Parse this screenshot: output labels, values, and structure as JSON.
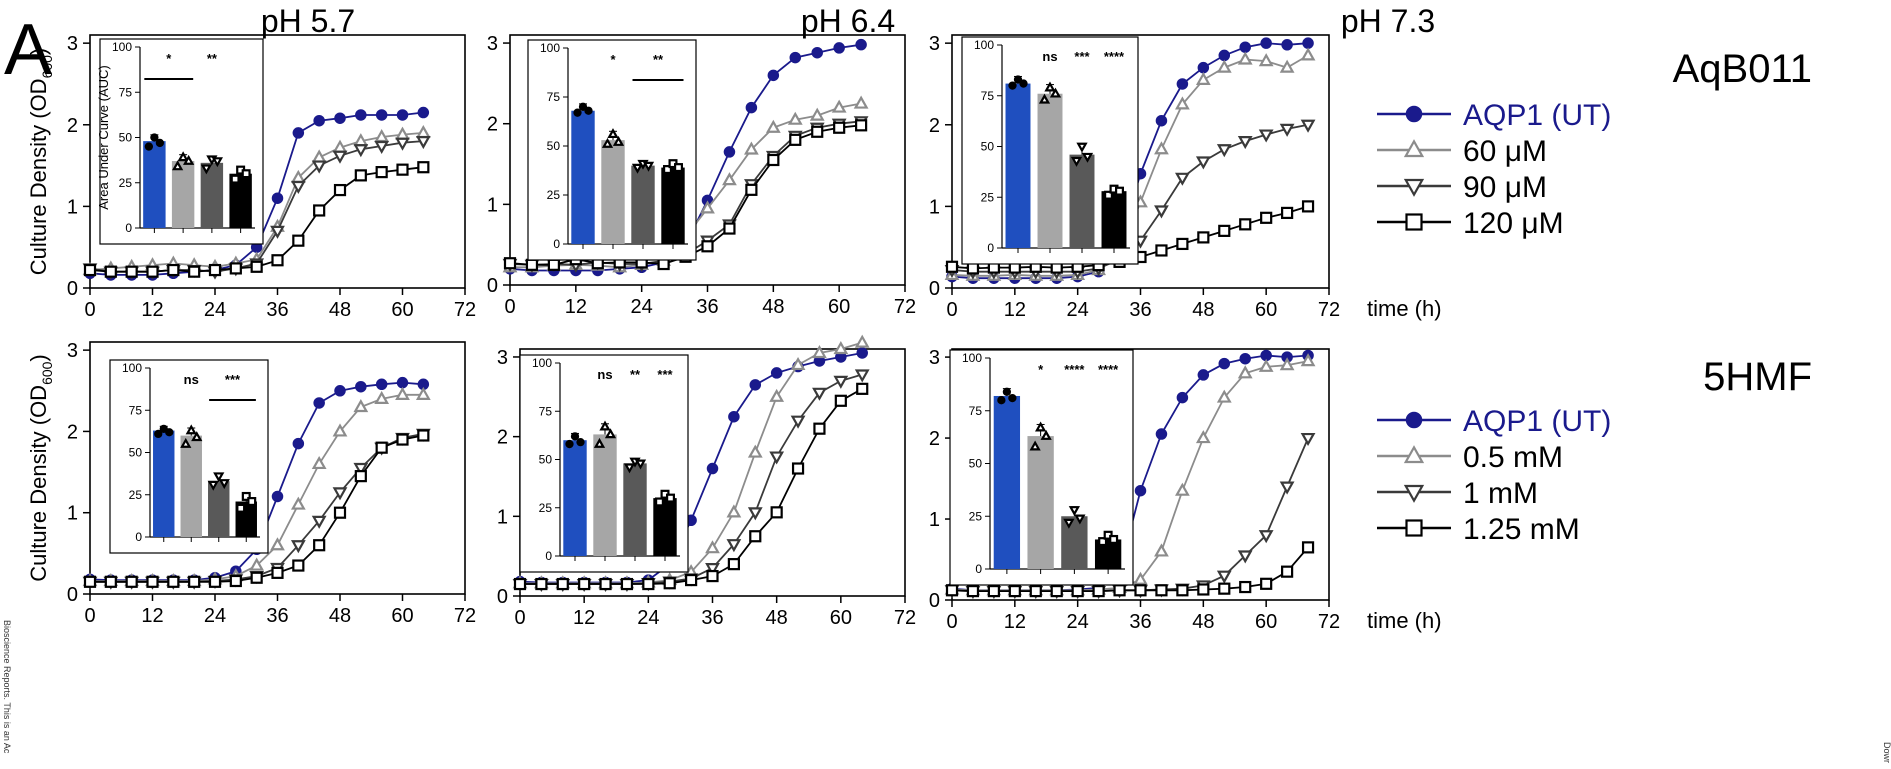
{
  "panel_letter": "A",
  "columns": [
    "pH 5.7",
    "pH 6.4",
    "pH 7.3"
  ],
  "y_label": "Culture Density (OD",
  "y_label_sub": "600",
  "y_label_close": ")",
  "time_label": "time (h)",
  "inset_ylabel": "Area Under Curve (AUC)",
  "side_note_left": "Bioscience Reports. This is an Ac",
  "side_note_right": "Dowr",
  "legends": [
    {
      "title": "AqB011",
      "entries": [
        "AQP1 (UT)",
        "60 μM",
        "90 μM",
        "120 μM"
      ]
    },
    {
      "title": "5HMF",
      "entries": [
        "AQP1 (UT)",
        "0.5 mM",
        "1 mM",
        "1.25 mM"
      ]
    }
  ],
  "colors": {
    "ut": "#1a1a8c",
    "c1": "#8c8c8c",
    "c2": "#3a3a3a",
    "c3": "#000000",
    "bar_ut": "#1f4fbf",
    "bar_c1": "#a6a6a6",
    "bar_c2": "#595959",
    "bar_c3": "#000000"
  },
  "chart_data": [
    {
      "type": "line",
      "row": "AqB011",
      "title": "pH 5.7",
      "xlabel": "",
      "ylabel": "Culture Density (OD600)",
      "x": [
        0,
        4,
        8,
        12,
        16,
        20,
        24,
        28,
        32,
        36,
        40,
        44,
        48,
        52,
        56,
        60,
        64
      ],
      "xlim": [
        0,
        72
      ],
      "ylim": [
        0,
        3.1
      ],
      "xticks": [
        0,
        12,
        24,
        36,
        48,
        60,
        72
      ],
      "yticks": [
        0,
        1,
        2,
        3
      ],
      "series": [
        {
          "name": "AQP1 (UT)",
          "values": [
            0.18,
            0.16,
            0.16,
            0.16,
            0.18,
            0.2,
            0.22,
            0.28,
            0.5,
            1.1,
            1.9,
            2.05,
            2.08,
            2.12,
            2.12,
            2.12,
            2.15
          ]
        },
        {
          "name": "60 μM",
          "values": [
            0.22,
            0.24,
            0.26,
            0.28,
            0.3,
            0.28,
            0.26,
            0.3,
            0.35,
            0.75,
            1.35,
            1.6,
            1.72,
            1.8,
            1.85,
            1.88,
            1.9
          ]
        },
        {
          "name": "90 μM",
          "values": [
            0.24,
            0.2,
            0.2,
            0.2,
            0.22,
            0.22,
            0.2,
            0.24,
            0.3,
            0.7,
            1.25,
            1.5,
            1.62,
            1.7,
            1.74,
            1.78,
            1.8
          ]
        },
        {
          "name": "120 μM",
          "values": [
            0.22,
            0.2,
            0.2,
            0.2,
            0.22,
            0.2,
            0.22,
            0.24,
            0.26,
            0.34,
            0.58,
            0.95,
            1.2,
            1.38,
            1.42,
            1.45,
            1.48
          ]
        }
      ],
      "inset": {
        "ylim": [
          0,
          100
        ],
        "yticks": [
          0,
          25,
          50,
          75,
          100
        ],
        "values": [
          48,
          37,
          36,
          30
        ],
        "points": [
          [
            45,
            50,
            47
          ],
          [
            34,
            39,
            37
          ],
          [
            33,
            38,
            37
          ],
          [
            27,
            32,
            30
          ]
        ],
        "annotations": [
          {
            "text": "*",
            "bar": "1-2",
            "line": true
          },
          {
            "text": "**",
            "bar": "3",
            "line": false
          }
        ]
      }
    },
    {
      "type": "line",
      "row": "AqB011",
      "title": "pH 6.4",
      "xlabel": "",
      "ylabel": "",
      "x": [
        0,
        4,
        8,
        12,
        16,
        20,
        24,
        28,
        32,
        36,
        40,
        44,
        48,
        52,
        56,
        60,
        64
      ],
      "xlim": [
        0,
        72
      ],
      "ylim": [
        0,
        3.1
      ],
      "xticks": [
        0,
        12,
        24,
        36,
        48,
        60,
        72
      ],
      "yticks": [
        0,
        1,
        2,
        3
      ],
      "series": [
        {
          "name": "AQP1 (UT)",
          "values": [
            0.2,
            0.18,
            0.18,
            0.18,
            0.18,
            0.2,
            0.22,
            0.28,
            0.5,
            1.05,
            1.65,
            2.2,
            2.6,
            2.82,
            2.88,
            2.94,
            2.98
          ]
        },
        {
          "name": "60 μM",
          "values": [
            0.22,
            0.22,
            0.24,
            0.25,
            0.24,
            0.22,
            0.25,
            0.3,
            0.6,
            0.95,
            1.3,
            1.68,
            1.95,
            2.05,
            2.1,
            2.2,
            2.25
          ]
        },
        {
          "name": "90 μM",
          "values": [
            0.26,
            0.25,
            0.26,
            0.25,
            0.28,
            0.26,
            0.26,
            0.3,
            0.38,
            0.55,
            0.75,
            1.25,
            1.6,
            1.85,
            1.95,
            2.0,
            2.03
          ]
        },
        {
          "name": "120 μM",
          "values": [
            0.27,
            0.25,
            0.25,
            0.32,
            0.27,
            0.28,
            0.28,
            0.26,
            0.35,
            0.48,
            0.7,
            1.18,
            1.55,
            1.8,
            1.9,
            1.95,
            1.98
          ]
        }
      ],
      "inset": {
        "ylim": [
          0,
          100
        ],
        "yticks": [
          0,
          25,
          50,
          75,
          100
        ],
        "values": [
          68,
          53,
          40,
          39
        ],
        "points": [
          [
            67,
            70,
            68
          ],
          [
            51,
            56,
            52
          ],
          [
            39,
            41,
            40
          ],
          [
            38,
            41,
            39
          ]
        ],
        "annotations": [
          {
            "text": "*",
            "bar": "2",
            "line": false
          },
          {
            "text": "**",
            "bar": "3-4",
            "line": true
          }
        ]
      }
    },
    {
      "type": "line",
      "row": "AqB011",
      "title": "pH 7.3",
      "xlabel": "time (h)",
      "ylabel": "",
      "x": [
        0,
        4,
        8,
        12,
        16,
        20,
        24,
        28,
        32,
        36,
        40,
        44,
        48,
        52,
        56,
        60,
        64,
        68
      ],
      "xlim": [
        0,
        72
      ],
      "ylim": [
        0,
        3.1
      ],
      "xticks": [
        0,
        12,
        24,
        36,
        48,
        60,
        72
      ],
      "yticks": [
        0,
        1,
        2,
        3
      ],
      "series": [
        {
          "name": "AQP1 (UT)",
          "values": [
            0.14,
            0.12,
            0.12,
            0.12,
            0.12,
            0.12,
            0.14,
            0.2,
            0.55,
            1.4,
            2.05,
            2.5,
            2.7,
            2.85,
            2.95,
            3.0,
            2.98,
            3.0
          ]
        },
        {
          "name": "60 μM",
          "values": [
            0.16,
            0.15,
            0.15,
            0.16,
            0.15,
            0.15,
            0.16,
            0.22,
            0.45,
            1.05,
            1.7,
            2.25,
            2.55,
            2.7,
            2.8,
            2.78,
            2.7,
            2.85
          ]
        },
        {
          "name": "90 μM",
          "values": [
            0.22,
            0.2,
            0.2,
            0.2,
            0.2,
            0.2,
            0.2,
            0.24,
            0.35,
            0.58,
            0.95,
            1.35,
            1.55,
            1.7,
            1.8,
            1.88,
            1.95,
            2.0
          ]
        },
        {
          "name": "120 μM",
          "values": [
            0.26,
            0.24,
            0.25,
            0.25,
            0.26,
            0.25,
            0.26,
            0.28,
            0.32,
            0.38,
            0.46,
            0.54,
            0.62,
            0.7,
            0.78,
            0.86,
            0.92,
            1.0
          ]
        }
      ],
      "inset": {
        "ylim": [
          0,
          100
        ],
        "yticks": [
          0,
          25,
          50,
          75,
          100
        ],
        "values": [
          81,
          76,
          46,
          28
        ],
        "points": [
          [
            80,
            83,
            81
          ],
          [
            73,
            79,
            76
          ],
          [
            43,
            50,
            45
          ],
          [
            26,
            29,
            28
          ]
        ],
        "annotations": [
          {
            "text": "ns",
            "bar": "2",
            "line": false
          },
          {
            "text": "***",
            "bar": "3",
            "line": false
          },
          {
            "text": "****",
            "bar": "4",
            "line": false
          }
        ]
      }
    },
    {
      "type": "line",
      "row": "5HMF",
      "title": "",
      "xlabel": "",
      "ylabel": "Culture Density (OD600)",
      "x": [
        0,
        4,
        8,
        12,
        16,
        20,
        24,
        28,
        32,
        36,
        40,
        44,
        48,
        52,
        56,
        60,
        64
      ],
      "xlim": [
        0,
        72
      ],
      "ylim": [
        0,
        3.1
      ],
      "xticks": [
        0,
        12,
        24,
        36,
        48,
        60,
        72
      ],
      "yticks": [
        0,
        1,
        2,
        3
      ],
      "series": [
        {
          "name": "AQP1 (UT)",
          "values": [
            0.18,
            0.17,
            0.17,
            0.17,
            0.17,
            0.17,
            0.2,
            0.28,
            0.55,
            1.2,
            1.85,
            2.35,
            2.5,
            2.55,
            2.58,
            2.6,
            2.58
          ]
        },
        {
          "name": "0.5 mM",
          "values": [
            0.16,
            0.16,
            0.16,
            0.16,
            0.16,
            0.16,
            0.18,
            0.22,
            0.35,
            0.6,
            1.1,
            1.6,
            2.0,
            2.3,
            2.4,
            2.45,
            2.45
          ]
        },
        {
          "name": "1 mM",
          "values": [
            0.15,
            0.15,
            0.15,
            0.15,
            0.15,
            0.15,
            0.16,
            0.18,
            0.22,
            0.32,
            0.6,
            0.9,
            1.25,
            1.55,
            1.8,
            1.92,
            1.97
          ]
        },
        {
          "name": "1.25 mM",
          "values": [
            0.15,
            0.15,
            0.15,
            0.15,
            0.15,
            0.15,
            0.15,
            0.16,
            0.2,
            0.26,
            0.35,
            0.6,
            1.0,
            1.45,
            1.8,
            1.9,
            1.95
          ]
        }
      ],
      "inset": {
        "ylim": [
          0,
          100
        ],
        "yticks": [
          0,
          25,
          50,
          75,
          100
        ],
        "values": [
          63,
          60,
          33,
          21
        ],
        "points": [
          [
            61,
            64,
            62
          ],
          [
            55,
            63,
            59
          ],
          [
            31,
            36,
            32
          ],
          [
            17,
            24,
            21
          ]
        ],
        "annotations": [
          {
            "text": "ns",
            "bar": "2",
            "line": false
          },
          {
            "text": "***",
            "bar": "3-4",
            "line": true
          }
        ]
      }
    },
    {
      "type": "line",
      "row": "5HMF",
      "title": "",
      "xlabel": "",
      "ylabel": "",
      "x": [
        0,
        4,
        8,
        12,
        16,
        20,
        24,
        28,
        32,
        36,
        40,
        44,
        48,
        52,
        56,
        60,
        64
      ],
      "xlim": [
        0,
        72
      ],
      "ylim": [
        0,
        3.1
      ],
      "xticks": [
        0,
        12,
        24,
        36,
        48,
        60,
        72
      ],
      "yticks": [
        0,
        1,
        2,
        3
      ],
      "series": [
        {
          "name": "AQP1 (UT)",
          "values": [
            0.18,
            0.17,
            0.17,
            0.17,
            0.17,
            0.17,
            0.2,
            0.4,
            0.95,
            1.6,
            2.25,
            2.65,
            2.8,
            2.88,
            2.95,
            3.0,
            3.05
          ]
        },
        {
          "name": "0.5 mM",
          "values": [
            0.16,
            0.16,
            0.16,
            0.16,
            0.16,
            0.16,
            0.17,
            0.2,
            0.3,
            0.6,
            1.05,
            1.8,
            2.5,
            2.9,
            3.05,
            3.1,
            3.18
          ]
        },
        {
          "name": "1 mM",
          "values": [
            0.15,
            0.15,
            0.15,
            0.15,
            0.15,
            0.15,
            0.16,
            0.18,
            0.22,
            0.35,
            0.65,
            1.05,
            1.75,
            2.2,
            2.55,
            2.7,
            2.78
          ]
        },
        {
          "name": "1.25 mM",
          "values": [
            0.15,
            0.15,
            0.15,
            0.15,
            0.15,
            0.15,
            0.15,
            0.16,
            0.2,
            0.25,
            0.4,
            0.75,
            1.05,
            1.6,
            2.1,
            2.45,
            2.6
          ]
        }
      ],
      "inset": {
        "ylim": [
          0,
          100
        ],
        "yticks": [
          0,
          25,
          50,
          75,
          100
        ],
        "values": [
          60,
          63,
          48,
          30
        ],
        "points": [
          [
            58,
            62,
            59
          ],
          [
            58,
            67,
            63
          ],
          [
            46,
            49,
            48
          ],
          [
            28,
            32,
            30
          ]
        ],
        "annotations": [
          {
            "text": "ns",
            "bar": "2",
            "line": false
          },
          {
            "text": "**",
            "bar": "3",
            "line": false
          },
          {
            "text": "***",
            "bar": "4",
            "line": false
          }
        ]
      }
    },
    {
      "type": "line",
      "row": "5HMF",
      "title": "",
      "xlabel": "time (h)",
      "ylabel": "",
      "x": [
        0,
        4,
        8,
        12,
        16,
        20,
        24,
        28,
        32,
        36,
        40,
        44,
        48,
        52,
        56,
        60,
        64,
        68
      ],
      "xlim": [
        0,
        72
      ],
      "ylim": [
        0,
        3.1
      ],
      "xticks": [
        0,
        12,
        24,
        36,
        48,
        60,
        72
      ],
      "yticks": [
        0,
        1,
        2,
        3
      ],
      "series": [
        {
          "name": "AQP1 (UT)",
          "values": [
            0.14,
            0.12,
            0.12,
            0.12,
            0.12,
            0.12,
            0.13,
            0.15,
            0.35,
            1.35,
            2.05,
            2.5,
            2.78,
            2.92,
            2.98,
            3.02,
            3.0,
            3.02
          ]
        },
        {
          "name": "0.5 mM",
          "values": [
            0.13,
            0.12,
            0.12,
            0.12,
            0.12,
            0.12,
            0.12,
            0.13,
            0.15,
            0.25,
            0.6,
            1.35,
            2.0,
            2.5,
            2.8,
            2.88,
            2.9,
            2.95
          ]
        },
        {
          "name": "1 mM",
          "values": [
            0.12,
            0.11,
            0.11,
            0.11,
            0.11,
            0.11,
            0.11,
            0.11,
            0.12,
            0.12,
            0.13,
            0.14,
            0.18,
            0.3,
            0.55,
            0.8,
            1.4,
            2.0
          ]
        },
        {
          "name": "1.25 mM",
          "values": [
            0.12,
            0.11,
            0.11,
            0.11,
            0.11,
            0.11,
            0.11,
            0.11,
            0.12,
            0.12,
            0.12,
            0.12,
            0.13,
            0.14,
            0.16,
            0.2,
            0.35,
            0.65
          ]
        }
      ],
      "inset": {
        "ylim": [
          0,
          100
        ],
        "yticks": [
          0,
          25,
          50,
          75,
          100
        ],
        "values": [
          82,
          63,
          25,
          14
        ],
        "points": [
          [
            80,
            84,
            81
          ],
          [
            58,
            67,
            63
          ],
          [
            22,
            28,
            24
          ],
          [
            13,
            16,
            14
          ]
        ],
        "annotations": [
          {
            "text": "*",
            "bar": "2",
            "line": false
          },
          {
            "text": "****",
            "bar": "3",
            "line": false
          },
          {
            "text": "****",
            "bar": "4",
            "line": false
          }
        ]
      }
    }
  ]
}
